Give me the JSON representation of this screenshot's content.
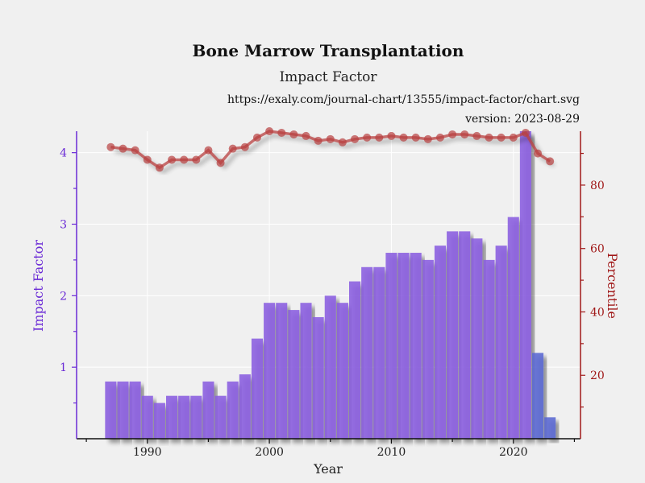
{
  "chart_data": {
    "type": "bar",
    "title": "Bone Marrow Transplantation",
    "subtitle": "Impact Factor",
    "source_url": "https://exaly.com/journal-chart/13555/impact-factor/chart.svg",
    "version_label": "version: 2023-08-29",
    "xlabel": "Year",
    "ylabel_left": "Impact Factor",
    "ylabel_right": "Percentile",
    "xlim": [
      1984.2,
      2025.5
    ],
    "ylim_left": [
      0,
      4.3
    ],
    "ylim_right": [
      0,
      97
    ],
    "x_ticks": [
      "1990",
      "2000",
      "2010",
      "2020"
    ],
    "y_ticks_left": [
      "1",
      "2",
      "3",
      "4"
    ],
    "y_ticks_right": [
      "20",
      "40",
      "60",
      "80"
    ],
    "grid": true,
    "colors": {
      "bar": "#8a5ee0",
      "bar_last": "#5a68d2",
      "left_axis": "#6a2ad6",
      "right_axis": "#a01818",
      "line": "#b84040",
      "background": "#f0f0f0"
    },
    "series": [
      {
        "name": "Impact Factor",
        "type": "bar",
        "x": [
          1987,
          1988,
          1989,
          1990,
          1991,
          1992,
          1993,
          1994,
          1995,
          1996,
          1997,
          1998,
          1999,
          2000,
          2001,
          2002,
          2003,
          2004,
          2005,
          2006,
          2007,
          2008,
          2009,
          2010,
          2011,
          2012,
          2013,
          2014,
          2015,
          2016,
          2017,
          2018,
          2019,
          2020,
          2021,
          2022,
          2023
        ],
        "values": [
          0.8,
          0.8,
          0.8,
          0.6,
          0.5,
          0.6,
          0.6,
          0.6,
          0.8,
          0.6,
          0.8,
          0.9,
          1.4,
          1.9,
          1.9,
          1.8,
          1.9,
          1.7,
          2.0,
          1.9,
          2.2,
          2.4,
          2.4,
          2.6,
          2.6,
          2.6,
          2.5,
          2.7,
          2.9,
          2.9,
          2.8,
          2.5,
          2.7,
          3.1,
          4.3,
          1.2,
          0.3
        ]
      },
      {
        "name": "Percentile",
        "type": "line",
        "x": [
          1987,
          1988,
          1989,
          1990,
          1991,
          1992,
          1993,
          1994,
          1995,
          1996,
          1997,
          1998,
          1999,
          2000,
          2001,
          2002,
          2003,
          2004,
          2005,
          2006,
          2007,
          2008,
          2009,
          2010,
          2011,
          2012,
          2013,
          2014,
          2015,
          2016,
          2017,
          2018,
          2019,
          2020,
          2021,
          2022,
          2023
        ],
        "values": [
          92,
          91.5,
          91,
          88,
          85.5,
          88,
          88,
          88,
          91,
          87,
          91.5,
          92,
          95,
          97,
          96.5,
          96,
          95.5,
          94,
          94.5,
          93.5,
          94.5,
          95,
          95,
          95.5,
          95,
          95,
          94.5,
          95,
          96,
          96,
          95.5,
          95,
          95,
          95,
          96.5,
          90,
          87.5
        ]
      }
    ]
  }
}
